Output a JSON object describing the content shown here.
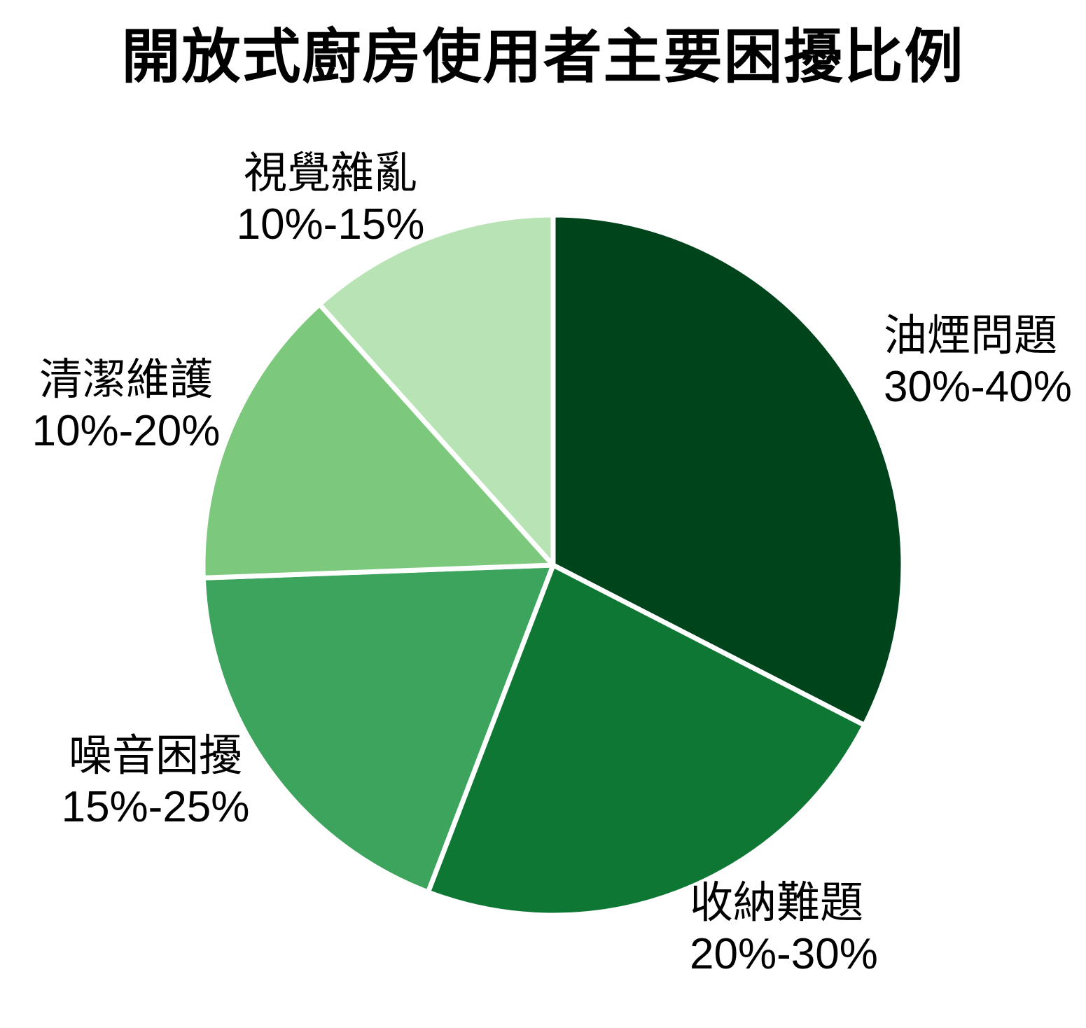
{
  "chart_data": {
    "type": "pie",
    "title": "開放式廚房使用者主要困擾比例",
    "direction": "clockwise",
    "start": "top",
    "legend": "none",
    "background": "#ffffff",
    "slice_gap_color": "#ffffff",
    "series": [
      {
        "key": "oil-smoke",
        "name": "油煙問題",
        "range": "30%-40%",
        "value": 35,
        "color": "#00441b"
      },
      {
        "key": "storage",
        "name": "收納難題",
        "range": "20%-30%",
        "value": 25,
        "color": "#0e7734"
      },
      {
        "key": "noise",
        "name": "噪音困擾",
        "range": "15%-25%",
        "value": 20,
        "color": "#3ca45c"
      },
      {
        "key": "cleaning",
        "name": "清潔維護",
        "range": "10%-20%",
        "value": 15,
        "color": "#7cc87d"
      },
      {
        "key": "visual-clutter",
        "name": "視覺雜亂",
        "range": "10%-15%",
        "value": 12.5,
        "color": "#b8e3b5"
      }
    ]
  }
}
